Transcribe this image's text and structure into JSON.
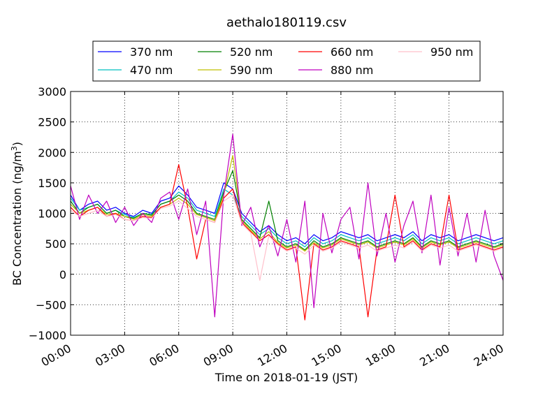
{
  "chart_data": {
    "type": "line",
    "title": "aethalo180119.csv",
    "xlabel": "Time on 2018-01-19 (JST)",
    "ylabel": "BC Concentration (ng/m³)",
    "ylabel_main": "BC Concentration (ng/m",
    "ylabel_sup": "3",
    "ylabel_end": ")",
    "x_unit": "hours",
    "xlim": [
      0,
      24
    ],
    "ylim": [
      -1000,
      3000
    ],
    "grid": true,
    "legend_position": "top",
    "x_ticks": [
      {
        "value": 0,
        "label": "00:00"
      },
      {
        "value": 3,
        "label": "03:00"
      },
      {
        "value": 6,
        "label": "06:00"
      },
      {
        "value": 9,
        "label": "09:00"
      },
      {
        "value": 12,
        "label": "12:00"
      },
      {
        "value": 15,
        "label": "15:00"
      },
      {
        "value": 18,
        "label": "18:00"
      },
      {
        "value": 21,
        "label": "21:00"
      },
      {
        "value": 24,
        "label": "24:00"
      }
    ],
    "y_ticks": [
      {
        "value": 3000,
        "label": "3000"
      },
      {
        "value": 2500,
        "label": "2500"
      },
      {
        "value": 2000,
        "label": "2000"
      },
      {
        "value": 1500,
        "label": "1500"
      },
      {
        "value": 1000,
        "label": "1000"
      },
      {
        "value": 500,
        "label": "500"
      },
      {
        "value": 0,
        "label": "0"
      },
      {
        "value": -500,
        "label": "−500"
      },
      {
        "value": -1000,
        "label": "−1000"
      }
    ],
    "x": [
      0.0,
      0.5,
      1.0,
      1.5,
      2.0,
      2.5,
      3.0,
      3.5,
      4.0,
      4.5,
      5.0,
      5.5,
      6.0,
      6.5,
      7.0,
      7.5,
      8.0,
      8.5,
      9.0,
      9.5,
      10.0,
      10.5,
      11.0,
      11.5,
      12.0,
      12.5,
      13.0,
      13.5,
      14.0,
      14.5,
      15.0,
      15.5,
      16.0,
      16.5,
      17.0,
      17.5,
      18.0,
      18.5,
      19.0,
      19.5,
      20.0,
      20.5,
      21.0,
      21.5,
      22.0,
      22.5,
      23.0,
      23.5,
      24.0
    ],
    "series": [
      {
        "name": "370 nm",
        "color": "#0000ff",
        "values": [
          1300,
          1050,
          1150,
          1200,
          1050,
          1100,
          1000,
          950,
          1050,
          1000,
          1200,
          1250,
          1450,
          1300,
          1100,
          1050,
          1000,
          1500,
          1400,
          1000,
          850,
          700,
          800,
          650,
          550,
          600,
          500,
          650,
          550,
          600,
          700,
          650,
          600,
          650,
          550,
          600,
          650,
          600,
          700,
          550,
          650,
          600,
          650,
          550,
          600,
          650,
          600,
          550,
          600
        ]
      },
      {
        "name": "470 nm",
        "color": "#00bfbf",
        "values": [
          1250,
          1050,
          1100,
          1150,
          1000,
          1050,
          980,
          930,
          1000,
          980,
          1150,
          1200,
          1350,
          1250,
          1050,
          1000,
          950,
          1400,
          1300,
          950,
          800,
          650,
          750,
          600,
          500,
          550,
          450,
          600,
          500,
          550,
          650,
          600,
          550,
          600,
          500,
          550,
          600,
          550,
          650,
          500,
          600,
          550,
          600,
          500,
          550,
          600,
          550,
          500,
          550
        ]
      },
      {
        "name": "520 nm",
        "color": "#008000",
        "values": [
          1200,
          1000,
          1100,
          1150,
          1000,
          1050,
          950,
          920,
          1000,
          970,
          1150,
          1200,
          1300,
          1200,
          1000,
          950,
          900,
          1350,
          1700,
          900,
          750,
          600,
          1200,
          550,
          450,
          500,
          400,
          550,
          450,
          500,
          600,
          550,
          500,
          550,
          450,
          500,
          550,
          500,
          600,
          450,
          550,
          500,
          550,
          450,
          500,
          550,
          500,
          450,
          500
        ]
      },
      {
        "name": "590 nm",
        "color": "#bfbf00",
        "values": [
          1150,
          1000,
          1050,
          1100,
          980,
          1000,
          950,
          900,
          980,
          950,
          1100,
          1150,
          1250,
          1150,
          980,
          930,
          880,
          1300,
          1950,
          880,
          720,
          580,
          700,
          520,
          430,
          480,
          380,
          520,
          430,
          480,
          580,
          530,
          480,
          530,
          430,
          480,
          530,
          480,
          580,
          430,
          530,
          480,
          530,
          430,
          480,
          530,
          480,
          430,
          480
        ]
      },
      {
        "name": "660 nm",
        "color": "#ff0000",
        "values": [
          1100,
          950,
          1050,
          1100,
          950,
          1000,
          900,
          880,
          950,
          930,
          1100,
          1150,
          1800,
          1100,
          250,
          900,
          850,
          1250,
          1400,
          850,
          700,
          550,
          650,
          500,
          400,
          450,
          -750,
          500,
          400,
          450,
          550,
          500,
          450,
          -700,
          400,
          450,
          1300,
          450,
          550,
          400,
          500,
          450,
          1300,
          400,
          450,
          500,
          450,
          400,
          450
        ]
      },
      {
        "name": "880 nm",
        "color": "#bf00bf",
        "values": [
          1450,
          900,
          1300,
          1000,
          1200,
          850,
          1100,
          800,
          1000,
          850,
          1250,
          1350,
          900,
          1400,
          650,
          1200,
          -700,
          1300,
          2300,
          800,
          1100,
          450,
          800,
          300,
          900,
          200,
          1200,
          -550,
          1000,
          350,
          900,
          1100,
          250,
          1500,
          300,
          1000,
          200,
          800,
          1200,
          350,
          1300,
          150,
          1100,
          300,
          1000,
          200,
          1050,
          300,
          -100
        ]
      },
      {
        "name": "950 nm",
        "color": "#ffc0cb",
        "values": [
          1050,
          950,
          1000,
          1050,
          950,
          980,
          900,
          880,
          930,
          920,
          1080,
          1120,
          1200,
          1080,
          950,
          900,
          850,
          1200,
          1300,
          830,
          680,
          -100,
          630,
          480,
          380,
          430,
          330,
          480,
          380,
          430,
          530,
          480,
          430,
          480,
          380,
          430,
          480,
          430,
          530,
          380,
          480,
          430,
          480,
          380,
          430,
          480,
          430,
          380,
          430
        ]
      }
    ]
  }
}
